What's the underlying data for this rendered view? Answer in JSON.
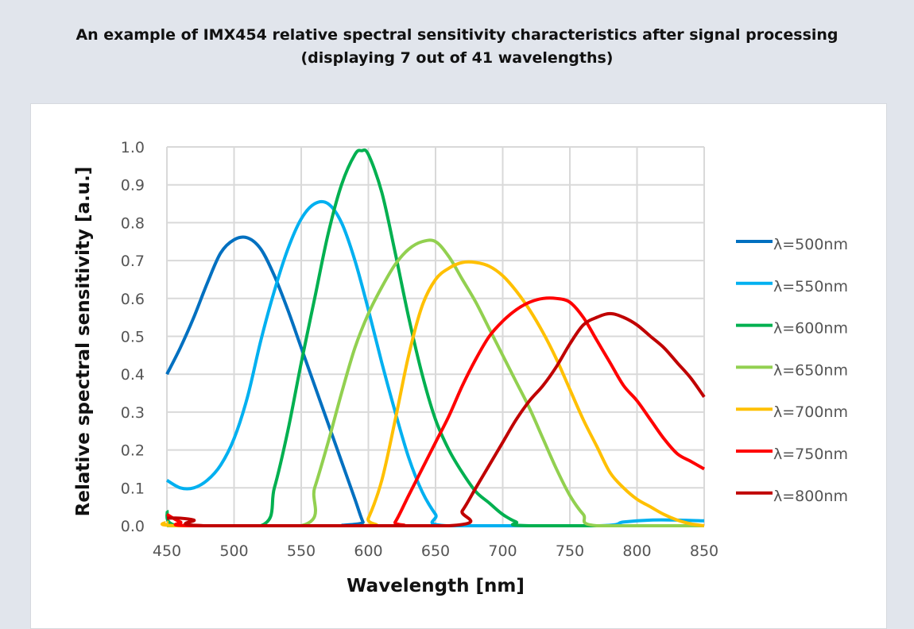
{
  "title_line1": "An example of IMX454 relative spectral sensitivity characteristics after signal processing",
  "title_line2": "(displaying 7 out of 41 wavelengths)",
  "chart_data": {
    "type": "line",
    "xlabel": "Wavelength [nm]",
    "ylabel": "Relative spectral sensitivity [a.u.]",
    "xlim": [
      450,
      850
    ],
    "ylim": [
      0,
      1.0
    ],
    "xticks": [
      "450",
      "500",
      "550",
      "600",
      "650",
      "700",
      "750",
      "800",
      "850"
    ],
    "yticks": [
      "0.0",
      "0.1",
      "0.2",
      "0.3",
      "0.4",
      "0.5",
      "0.6",
      "0.7",
      "0.8",
      "0.9",
      "1.0"
    ],
    "grid": true,
    "legend": "right",
    "series": [
      {
        "name": "λ=500nm",
        "color": "#0070c0",
        "points": [
          [
            450,
            0.4
          ],
          [
            460,
            0.47
          ],
          [
            470,
            0.55
          ],
          [
            480,
            0.64
          ],
          [
            490,
            0.72
          ],
          [
            500,
            0.755
          ],
          [
            510,
            0.76
          ],
          [
            520,
            0.73
          ],
          [
            530,
            0.66
          ],
          [
            540,
            0.57
          ],
          [
            550,
            0.47
          ],
          [
            560,
            0.37
          ],
          [
            570,
            0.27
          ],
          [
            580,
            0.17
          ],
          [
            590,
            0.07
          ],
          [
            596,
            0.01
          ],
          [
            600,
            0
          ],
          [
            850,
            0
          ]
        ]
      },
      {
        "name": "λ=550nm",
        "color": "#00b0f0",
        "points": [
          [
            450,
            0.12
          ],
          [
            460,
            0.1
          ],
          [
            470,
            0.1
          ],
          [
            480,
            0.12
          ],
          [
            490,
            0.16
          ],
          [
            500,
            0.23
          ],
          [
            510,
            0.34
          ],
          [
            520,
            0.49
          ],
          [
            530,
            0.62
          ],
          [
            540,
            0.73
          ],
          [
            550,
            0.81
          ],
          [
            560,
            0.85
          ],
          [
            570,
            0.85
          ],
          [
            580,
            0.8
          ],
          [
            590,
            0.7
          ],
          [
            600,
            0.57
          ],
          [
            610,
            0.43
          ],
          [
            620,
            0.3
          ],
          [
            630,
            0.18
          ],
          [
            640,
            0.09
          ],
          [
            650,
            0.03
          ],
          [
            658,
            0
          ],
          [
            770,
            0
          ],
          [
            790,
            0.01
          ],
          [
            810,
            0.015
          ],
          [
            830,
            0.015
          ],
          [
            850,
            0.013
          ]
        ]
      },
      {
        "name": "λ=600nm",
        "color": "#00b050",
        "points": [
          [
            450,
            0.04
          ],
          [
            458,
            0
          ],
          [
            520,
            0
          ],
          [
            530,
            0.1
          ],
          [
            540,
            0.25
          ],
          [
            550,
            0.43
          ],
          [
            560,
            0.6
          ],
          [
            570,
            0.77
          ],
          [
            580,
            0.9
          ],
          [
            590,
            0.98
          ],
          [
            595,
            0.99
          ],
          [
            600,
            0.98
          ],
          [
            610,
            0.88
          ],
          [
            620,
            0.72
          ],
          [
            630,
            0.55
          ],
          [
            640,
            0.4
          ],
          [
            650,
            0.28
          ],
          [
            660,
            0.2
          ],
          [
            670,
            0.14
          ],
          [
            680,
            0.09
          ],
          [
            690,
            0.06
          ],
          [
            700,
            0.03
          ],
          [
            710,
            0.01
          ],
          [
            720,
            0
          ],
          [
            850,
            0
          ]
        ]
      },
      {
        "name": "λ=650nm",
        "color": "#92d050",
        "points": [
          [
            450,
            0
          ],
          [
            550,
            0
          ],
          [
            560,
            0.1
          ],
          [
            570,
            0.22
          ],
          [
            580,
            0.35
          ],
          [
            590,
            0.47
          ],
          [
            600,
            0.56
          ],
          [
            610,
            0.63
          ],
          [
            620,
            0.69
          ],
          [
            630,
            0.73
          ],
          [
            640,
            0.75
          ],
          [
            650,
            0.75
          ],
          [
            660,
            0.71
          ],
          [
            670,
            0.65
          ],
          [
            680,
            0.59
          ],
          [
            690,
            0.52
          ],
          [
            700,
            0.45
          ],
          [
            710,
            0.38
          ],
          [
            720,
            0.31
          ],
          [
            730,
            0.23
          ],
          [
            740,
            0.15
          ],
          [
            750,
            0.08
          ],
          [
            760,
            0.03
          ],
          [
            770,
            0
          ],
          [
            850,
            0
          ]
        ]
      },
      {
        "name": "λ=700nm",
        "color": "#ffc000",
        "points": [
          [
            450,
            0.01
          ],
          [
            460,
            0
          ],
          [
            595,
            0
          ],
          [
            600,
            0.02
          ],
          [
            610,
            0.12
          ],
          [
            620,
            0.28
          ],
          [
            630,
            0.45
          ],
          [
            640,
            0.58
          ],
          [
            650,
            0.65
          ],
          [
            660,
            0.68
          ],
          [
            670,
            0.695
          ],
          [
            680,
            0.695
          ],
          [
            690,
            0.685
          ],
          [
            700,
            0.66
          ],
          [
            710,
            0.62
          ],
          [
            720,
            0.57
          ],
          [
            730,
            0.51
          ],
          [
            740,
            0.44
          ],
          [
            750,
            0.36
          ],
          [
            760,
            0.28
          ],
          [
            770,
            0.21
          ],
          [
            780,
            0.14
          ],
          [
            790,
            0.1
          ],
          [
            800,
            0.07
          ],
          [
            810,
            0.05
          ],
          [
            820,
            0.03
          ],
          [
            830,
            0.015
          ],
          [
            840,
            0.005
          ],
          [
            850,
            0
          ]
        ]
      },
      {
        "name": "λ=750nm",
        "color": "#ff0000",
        "points": [
          [
            450,
            0.03
          ],
          [
            460,
            0.01
          ],
          [
            470,
            0
          ],
          [
            615,
            0
          ],
          [
            620,
            0.01
          ],
          [
            630,
            0.08
          ],
          [
            640,
            0.15
          ],
          [
            650,
            0.22
          ],
          [
            660,
            0.29
          ],
          [
            670,
            0.37
          ],
          [
            680,
            0.44
          ],
          [
            690,
            0.5
          ],
          [
            700,
            0.54
          ],
          [
            710,
            0.57
          ],
          [
            720,
            0.59
          ],
          [
            730,
            0.6
          ],
          [
            740,
            0.6
          ],
          [
            750,
            0.59
          ],
          [
            760,
            0.55
          ],
          [
            770,
            0.49
          ],
          [
            780,
            0.43
          ],
          [
            790,
            0.37
          ],
          [
            800,
            0.33
          ],
          [
            810,
            0.28
          ],
          [
            820,
            0.23
          ],
          [
            830,
            0.19
          ],
          [
            840,
            0.17
          ],
          [
            850,
            0.15
          ]
        ]
      },
      {
        "name": "λ=800nm",
        "color": "#c00000",
        "points": [
          [
            450,
            0.02
          ],
          [
            460,
            0.02
          ],
          [
            470,
            0.015
          ],
          [
            480,
            0
          ],
          [
            660,
            0
          ],
          [
            670,
            0.04
          ],
          [
            680,
            0.1
          ],
          [
            690,
            0.16
          ],
          [
            700,
            0.22
          ],
          [
            710,
            0.28
          ],
          [
            720,
            0.33
          ],
          [
            730,
            0.37
          ],
          [
            740,
            0.42
          ],
          [
            750,
            0.48
          ],
          [
            760,
            0.53
          ],
          [
            770,
            0.55
          ],
          [
            780,
            0.56
          ],
          [
            790,
            0.55
          ],
          [
            800,
            0.53
          ],
          [
            810,
            0.5
          ],
          [
            820,
            0.47
          ],
          [
            830,
            0.43
          ],
          [
            840,
            0.39
          ],
          [
            850,
            0.34
          ]
        ]
      }
    ]
  }
}
